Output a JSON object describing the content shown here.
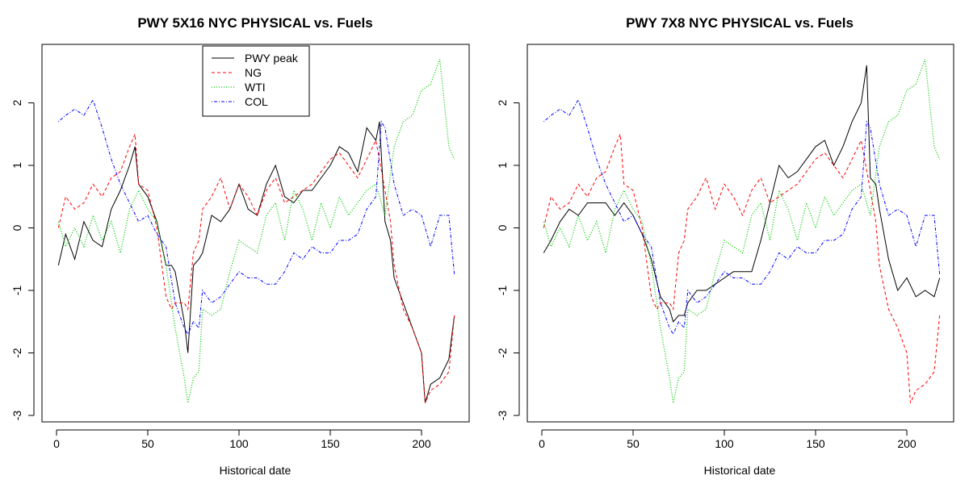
{
  "colors": {
    "PWY peak": "#000000",
    "NG": "#ff0000",
    "WTI": "#00cc00",
    "COL": "#0000ff"
  },
  "chart_data": [
    {
      "type": "line",
      "title": "PWY 5X16 NYC PHYSICAL vs. Fuels",
      "xlabel": "Historical date",
      "ylabel": "",
      "xlim": [
        0,
        220
      ],
      "ylim": [
        -3,
        2.7
      ],
      "xticks": [
        0,
        50,
        100,
        150,
        200
      ],
      "yticks": [
        -3,
        -2,
        -1,
        0,
        1,
        2
      ],
      "grid": false,
      "legend": {
        "position": "top-center",
        "entries": [
          "PWY peak",
          "NG",
          "WTI",
          "COL"
        ]
      },
      "series": [
        {
          "name": "PWY peak",
          "style": "solid",
          "x": [
            1,
            5,
            10,
            15,
            20,
            25,
            30,
            35,
            40,
            43,
            45,
            50,
            55,
            60,
            63,
            65,
            70,
            72,
            75,
            78,
            80,
            85,
            90,
            95,
            100,
            105,
            110,
            115,
            120,
            125,
            130,
            135,
            140,
            145,
            150,
            155,
            160,
            165,
            170,
            175,
            177,
            180,
            183,
            185,
            190,
            195,
            200,
            202,
            205,
            210,
            215,
            218
          ],
          "y": [
            -0.6,
            -0.1,
            -0.5,
            0.1,
            -0.2,
            -0.3,
            0.3,
            0.6,
            1.0,
            1.3,
            0.7,
            0.5,
            0.1,
            -0.6,
            -0.6,
            -0.7,
            -1.5,
            -2.0,
            -0.6,
            -0.5,
            -0.4,
            0.2,
            0.1,
            0.3,
            0.7,
            0.3,
            0.2,
            0.7,
            1.0,
            0.5,
            0.4,
            0.6,
            0.6,
            0.8,
            1.0,
            1.3,
            1.2,
            0.9,
            1.6,
            1.4,
            1.7,
            0.1,
            -0.2,
            -0.8,
            -1.2,
            -1.6,
            -2.0,
            -2.8,
            -2.5,
            -2.4,
            -2.1,
            -1.4
          ]
        },
        {
          "name": "NG",
          "style": "dashed",
          "x": [
            1,
            5,
            10,
            15,
            20,
            25,
            30,
            35,
            40,
            43,
            45,
            50,
            55,
            60,
            63,
            65,
            70,
            72,
            75,
            78,
            80,
            85,
            90,
            95,
            100,
            105,
            110,
            115,
            120,
            125,
            130,
            135,
            140,
            145,
            150,
            155,
            160,
            165,
            170,
            175,
            180,
            183,
            185,
            190,
            195,
            200,
            202,
            205,
            210,
            215,
            218
          ],
          "y": [
            0.0,
            0.5,
            0.3,
            0.4,
            0.7,
            0.5,
            0.8,
            0.9,
            1.3,
            1.5,
            0.7,
            0.6,
            0.0,
            -1.1,
            -1.3,
            -1.2,
            -1.2,
            -1.3,
            -0.4,
            -0.2,
            0.3,
            0.5,
            0.8,
            0.3,
            0.7,
            0.5,
            0.2,
            0.6,
            0.8,
            0.4,
            0.5,
            0.6,
            0.7,
            0.9,
            1.1,
            1.2,
            1.0,
            0.8,
            1.1,
            1.4,
            0.6,
            0.1,
            -0.6,
            -1.3,
            -1.6,
            -2.0,
            -2.8,
            -2.6,
            -2.5,
            -2.3,
            -1.4
          ]
        },
        {
          "name": "WTI",
          "style": "dotted",
          "x": [
            1,
            5,
            10,
            15,
            20,
            25,
            30,
            35,
            40,
            45,
            50,
            55,
            60,
            65,
            70,
            72,
            75,
            78,
            80,
            85,
            90,
            95,
            100,
            105,
            110,
            115,
            120,
            125,
            130,
            135,
            140,
            145,
            150,
            155,
            160,
            165,
            170,
            175,
            180,
            185,
            190,
            195,
            200,
            205,
            210,
            215,
            218
          ],
          "y": [
            0.1,
            -0.3,
            0.0,
            -0.3,
            0.2,
            -0.2,
            0.1,
            -0.4,
            0.3,
            0.6,
            0.3,
            0.1,
            -0.6,
            -1.6,
            -2.4,
            -2.8,
            -2.4,
            -2.3,
            -1.3,
            -1.4,
            -1.3,
            -0.7,
            -0.2,
            -0.3,
            -0.4,
            0.2,
            0.4,
            -0.2,
            0.6,
            0.3,
            -0.2,
            0.4,
            0.0,
            0.5,
            0.2,
            0.4,
            0.6,
            0.7,
            0.2,
            1.3,
            1.7,
            1.8,
            2.2,
            2.3,
            2.7,
            1.3,
            1.1
          ]
        },
        {
          "name": "COL",
          "style": "dotdash",
          "x": [
            1,
            5,
            10,
            15,
            20,
            25,
            30,
            35,
            40,
            45,
            50,
            55,
            60,
            65,
            70,
            72,
            75,
            78,
            80,
            85,
            90,
            95,
            100,
            105,
            110,
            115,
            120,
            125,
            130,
            135,
            140,
            145,
            150,
            155,
            160,
            165,
            170,
            175,
            178,
            180,
            185,
            190,
            195,
            200,
            205,
            210,
            215,
            218
          ],
          "y": [
            1.7,
            1.8,
            1.9,
            1.8,
            2.05,
            1.6,
            1.1,
            0.7,
            0.4,
            0.1,
            0.2,
            -0.1,
            -0.3,
            -1.2,
            -1.6,
            -1.7,
            -1.5,
            -1.6,
            -1.0,
            -1.2,
            -1.1,
            -0.9,
            -0.7,
            -0.8,
            -0.8,
            -0.9,
            -0.9,
            -0.7,
            -0.4,
            -0.5,
            -0.3,
            -0.4,
            -0.4,
            -0.2,
            -0.2,
            -0.1,
            0.3,
            0.5,
            1.7,
            1.6,
            0.7,
            0.2,
            0.3,
            0.2,
            -0.3,
            0.2,
            0.2,
            -0.75
          ]
        }
      ]
    },
    {
      "type": "line",
      "title": "PWY 7X8 NYC PHYSICAL vs. Fuels",
      "xlabel": "Historical date",
      "ylabel": "",
      "xlim": [
        0,
        220
      ],
      "ylim": [
        -3,
        2.7
      ],
      "xticks": [
        0,
        50,
        100,
        150,
        200
      ],
      "yticks": [
        -3,
        -2,
        -1,
        0,
        1,
        2
      ],
      "grid": false,
      "series": [
        {
          "name": "PWY peak",
          "style": "solid",
          "x": [
            1,
            5,
            10,
            15,
            20,
            25,
            30,
            35,
            40,
            45,
            50,
            55,
            60,
            65,
            70,
            72,
            75,
            78,
            80,
            85,
            90,
            95,
            100,
            105,
            110,
            115,
            120,
            125,
            130,
            135,
            140,
            145,
            150,
            155,
            160,
            165,
            170,
            175,
            178,
            180,
            183,
            185,
            190,
            195,
            200,
            205,
            210,
            215,
            218
          ],
          "y": [
            -0.4,
            -0.2,
            0.1,
            0.3,
            0.2,
            0.4,
            0.4,
            0.4,
            0.2,
            0.4,
            0.2,
            -0.1,
            -0.5,
            -1.1,
            -1.3,
            -1.5,
            -1.4,
            -1.4,
            -1.2,
            -1.0,
            -1.0,
            -0.9,
            -0.8,
            -0.7,
            -0.7,
            -0.7,
            -0.2,
            0.4,
            1.0,
            0.8,
            0.9,
            1.1,
            1.3,
            1.4,
            1.0,
            1.3,
            1.7,
            2.0,
            2.6,
            0.8,
            0.7,
            0.3,
            -0.5,
            -1.0,
            -0.8,
            -1.1,
            -1.0,
            -1.1,
            -0.8
          ]
        },
        {
          "name": "NG",
          "style": "dashed",
          "x": [
            1,
            5,
            10,
            15,
            20,
            25,
            30,
            35,
            40,
            43,
            45,
            50,
            55,
            60,
            63,
            65,
            70,
            72,
            75,
            78,
            80,
            85,
            90,
            95,
            100,
            105,
            110,
            115,
            120,
            125,
            130,
            135,
            140,
            145,
            150,
            155,
            160,
            165,
            170,
            175,
            180,
            183,
            185,
            190,
            195,
            200,
            202,
            205,
            210,
            215,
            218
          ],
          "y": [
            0.0,
            0.5,
            0.3,
            0.4,
            0.7,
            0.5,
            0.8,
            0.9,
            1.3,
            1.5,
            0.7,
            0.6,
            0.0,
            -1.1,
            -1.3,
            -1.2,
            -1.2,
            -1.3,
            -0.4,
            -0.2,
            0.3,
            0.5,
            0.8,
            0.3,
            0.7,
            0.5,
            0.2,
            0.6,
            0.8,
            0.4,
            0.5,
            0.6,
            0.7,
            0.9,
            1.1,
            1.2,
            1.0,
            0.8,
            1.1,
            1.4,
            0.6,
            0.1,
            -0.6,
            -1.3,
            -1.6,
            -2.0,
            -2.8,
            -2.6,
            -2.5,
            -2.3,
            -1.4
          ]
        },
        {
          "name": "WTI",
          "style": "dotted",
          "x": [
            1,
            5,
            10,
            15,
            20,
            25,
            30,
            35,
            40,
            45,
            50,
            55,
            60,
            65,
            70,
            72,
            75,
            78,
            80,
            85,
            90,
            95,
            100,
            105,
            110,
            115,
            120,
            125,
            130,
            135,
            140,
            145,
            150,
            155,
            160,
            165,
            170,
            175,
            180,
            185,
            190,
            195,
            200,
            205,
            210,
            215,
            218
          ],
          "y": [
            0.1,
            -0.3,
            0.0,
            -0.3,
            0.2,
            -0.2,
            0.1,
            -0.4,
            0.3,
            0.6,
            0.3,
            0.1,
            -0.6,
            -1.6,
            -2.4,
            -2.8,
            -2.4,
            -2.3,
            -1.3,
            -1.4,
            -1.3,
            -0.7,
            -0.2,
            -0.3,
            -0.4,
            0.2,
            0.4,
            -0.2,
            0.6,
            0.3,
            -0.2,
            0.4,
            0.0,
            0.5,
            0.2,
            0.4,
            0.6,
            0.7,
            0.2,
            1.3,
            1.7,
            1.8,
            2.2,
            2.3,
            2.7,
            1.3,
            1.1
          ]
        },
        {
          "name": "COL",
          "style": "dotdash",
          "x": [
            1,
            5,
            10,
            15,
            20,
            25,
            30,
            35,
            40,
            45,
            50,
            55,
            60,
            65,
            70,
            72,
            75,
            78,
            80,
            85,
            90,
            95,
            100,
            105,
            110,
            115,
            120,
            125,
            130,
            135,
            140,
            145,
            150,
            155,
            160,
            165,
            170,
            175,
            178,
            180,
            185,
            190,
            195,
            200,
            205,
            210,
            215,
            218
          ],
          "y": [
            1.7,
            1.8,
            1.9,
            1.8,
            2.05,
            1.6,
            1.1,
            0.7,
            0.4,
            0.1,
            0.2,
            -0.1,
            -0.3,
            -1.2,
            -1.6,
            -1.7,
            -1.5,
            -1.6,
            -1.0,
            -1.2,
            -1.1,
            -0.9,
            -0.7,
            -0.8,
            -0.8,
            -0.9,
            -0.9,
            -0.7,
            -0.4,
            -0.5,
            -0.3,
            -0.4,
            -0.4,
            -0.2,
            -0.2,
            -0.1,
            0.3,
            0.5,
            1.7,
            1.6,
            0.7,
            0.2,
            0.3,
            0.2,
            -0.3,
            0.2,
            0.2,
            -0.75
          ]
        }
      ]
    }
  ]
}
